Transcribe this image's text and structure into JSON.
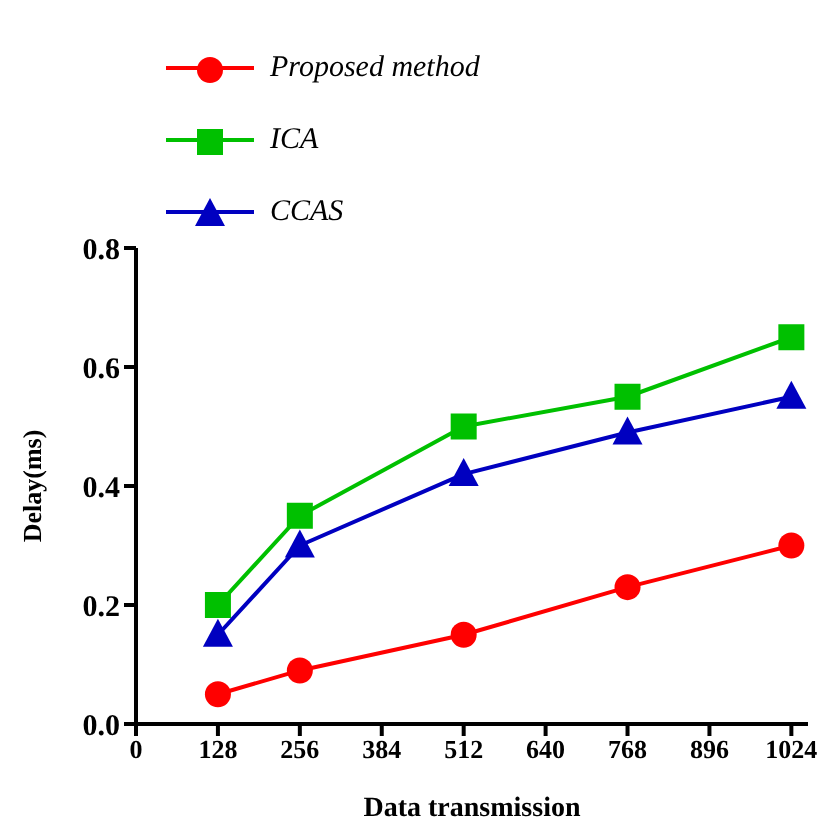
{
  "chart_data": {
    "type": "line",
    "xlabel": "Data transmission",
    "ylabel": "Delay(ms)",
    "xlim": [
      0,
      1050
    ],
    "xticks": [
      0,
      128,
      256,
      384,
      512,
      640,
      768,
      896,
      1024
    ],
    "ylim": [
      0,
      0.8
    ],
    "yticks": [
      {
        "value": 0,
        "label": "0.0"
      },
      {
        "value": 0.2,
        "label": "0.2"
      },
      {
        "value": 0.4,
        "label": "0.4"
      },
      {
        "value": 0.6,
        "label": "0.6"
      },
      {
        "value": 0.8,
        "label": "0.8"
      }
    ],
    "x": [
      128,
      256,
      512,
      768,
      1024
    ],
    "series": [
      {
        "name": "Proposed method",
        "color": "#ff0000",
        "marker": "circle",
        "values": [
          0.05,
          0.09,
          0.15,
          0.23,
          0.3
        ]
      },
      {
        "name": "ICA",
        "color": "#00c000",
        "marker": "square",
        "values": [
          0.2,
          0.35,
          0.5,
          0.55,
          0.65
        ]
      },
      {
        "name": "CCAS",
        "color": "#0000c0",
        "marker": "triangle",
        "values": [
          0.15,
          0.3,
          0.42,
          0.49,
          0.55
        ]
      }
    ],
    "grid": false,
    "legend": "top left",
    "line_style": "solid"
  }
}
